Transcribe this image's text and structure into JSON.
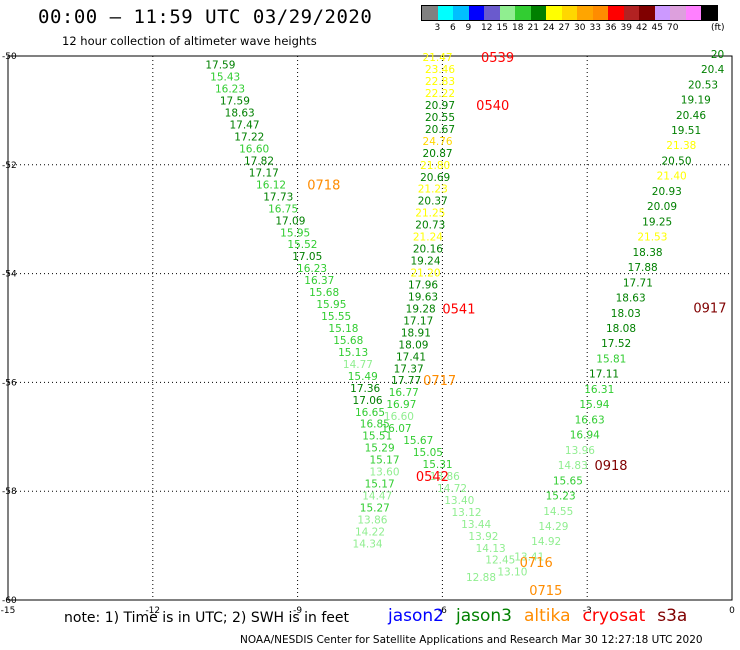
{
  "header": {
    "title": "00:00 – 11:59 UTC 03/29/2020",
    "subtitle": "12 hour collection of altimeter wave heights"
  },
  "colorbar": {
    "unit": "(ft)",
    "colors": [
      "#808080",
      "#00ffff",
      "#00bfff",
      "#0000ff",
      "#6a5acd",
      "#90ee90",
      "#32cd32",
      "#008000",
      "#ffff00",
      "#ffd700",
      "#ffa500",
      "#ff8c00",
      "#ff0000",
      "#b22222",
      "#800000",
      "#cc99ff",
      "#dda0dd",
      "#ff80ff",
      "#000000"
    ],
    "labels": [
      "3",
      "6",
      "9",
      "12",
      "15",
      "18",
      "21",
      "24",
      "27",
      "30",
      "33",
      "36",
      "39",
      "42",
      "45",
      "70"
    ]
  },
  "chart_data": {
    "type": "map-track-labels",
    "xlim": [
      -15,
      0
    ],
    "ylim": [
      -60,
      -50
    ],
    "x_ticks": [
      "-15",
      "-12",
      "-9",
      "-6",
      "-3",
      "0"
    ],
    "y_ticks": [
      "-50",
      "-52",
      "-54",
      "-56",
      "-58",
      "-60"
    ],
    "points": [
      {
        "x": -10.6,
        "y": -50.16,
        "v": "17.59",
        "c": "#008000"
      },
      {
        "x": -10.5,
        "y": -50.38,
        "v": "15.43",
        "c": "#32cd32"
      },
      {
        "x": -10.4,
        "y": -50.6,
        "v": "16.23",
        "c": "#32cd32"
      },
      {
        "x": -10.3,
        "y": -50.82,
        "v": "17.59",
        "c": "#008000"
      },
      {
        "x": -10.2,
        "y": -51.04,
        "v": "18.63",
        "c": "#008000"
      },
      {
        "x": -10.1,
        "y": -51.26,
        "v": "17.47",
        "c": "#008000"
      },
      {
        "x": -10.0,
        "y": -51.48,
        "v": "17.22",
        "c": "#008000"
      },
      {
        "x": -9.9,
        "y": -51.7,
        "v": "16.60",
        "c": "#32cd32"
      },
      {
        "x": -9.8,
        "y": -51.92,
        "v": "17.82",
        "c": "#008000"
      },
      {
        "x": -9.7,
        "y": -52.14,
        "v": "17.17",
        "c": "#008000"
      },
      {
        "x": -9.55,
        "y": -52.36,
        "v": "16.12",
        "c": "#32cd32"
      },
      {
        "x": -9.4,
        "y": -52.58,
        "v": "17.73",
        "c": "#008000"
      },
      {
        "x": -9.3,
        "y": -52.8,
        "v": "16.75",
        "c": "#32cd32"
      },
      {
        "x": -9.15,
        "y": -53.02,
        "v": "17.09",
        "c": "#008000"
      },
      {
        "x": -9.05,
        "y": -53.24,
        "v": "15.95",
        "c": "#32cd32"
      },
      {
        "x": -8.9,
        "y": -53.46,
        "v": "15.52",
        "c": "#32cd32"
      },
      {
        "x": -8.8,
        "y": -53.68,
        "v": "17.05",
        "c": "#008000"
      },
      {
        "x": -8.7,
        "y": -53.9,
        "v": "16.23",
        "c": "#32cd32"
      },
      {
        "x": -8.55,
        "y": -54.12,
        "v": "16.37",
        "c": "#32cd32"
      },
      {
        "x": -8.45,
        "y": -54.34,
        "v": "15.68",
        "c": "#32cd32"
      },
      {
        "x": -8.3,
        "y": -54.56,
        "v": "15.95",
        "c": "#32cd32"
      },
      {
        "x": -8.2,
        "y": -54.78,
        "v": "15.55",
        "c": "#32cd32"
      },
      {
        "x": -8.05,
        "y": -55.0,
        "v": "15.18",
        "c": "#32cd32"
      },
      {
        "x": -7.95,
        "y": -55.22,
        "v": "15.68",
        "c": "#32cd32"
      },
      {
        "x": -7.85,
        "y": -55.44,
        "v": "15.13",
        "c": "#32cd32"
      },
      {
        "x": -7.75,
        "y": -55.66,
        "v": "14.77",
        "c": "#90ee90"
      },
      {
        "x": -7.65,
        "y": -55.88,
        "v": "15.49",
        "c": "#32cd32"
      },
      {
        "x": -7.6,
        "y": -56.1,
        "v": "17.36",
        "c": "#008000"
      },
      {
        "x": -7.55,
        "y": -56.32,
        "v": "17.06",
        "c": "#008000"
      },
      {
        "x": -7.5,
        "y": -56.54,
        "v": "16.65",
        "c": "#32cd32"
      },
      {
        "x": -7.4,
        "y": -56.76,
        "v": "16.85",
        "c": "#32cd32"
      },
      {
        "x": -7.35,
        "y": -56.98,
        "v": "15.51",
        "c": "#32cd32"
      },
      {
        "x": -7.3,
        "y": -57.2,
        "v": "15.29",
        "c": "#32cd32"
      },
      {
        "x": -7.2,
        "y": -57.42,
        "v": "15.17",
        "c": "#32cd32"
      },
      {
        "x": -7.2,
        "y": -57.64,
        "v": "13.60",
        "c": "#90ee90"
      },
      {
        "x": -7.3,
        "y": -57.86,
        "v": "15.17",
        "c": "#32cd32"
      },
      {
        "x": -7.35,
        "y": -58.08,
        "v": "14.47",
        "c": "#90ee90"
      },
      {
        "x": -7.4,
        "y": -58.3,
        "v": "15.27",
        "c": "#32cd32"
      },
      {
        "x": -7.45,
        "y": -58.52,
        "v": "13.86",
        "c": "#90ee90"
      },
      {
        "x": -7.5,
        "y": -58.74,
        "v": "14.22",
        "c": "#90ee90"
      },
      {
        "x": -7.55,
        "y": -58.96,
        "v": "14.34",
        "c": "#90ee90"
      },
      {
        "x": -6.1,
        "y": -50.02,
        "v": "21.47",
        "c": "#ffff00"
      },
      {
        "x": -6.05,
        "y": -50.24,
        "v": "23.46",
        "c": "#ffff00"
      },
      {
        "x": -6.05,
        "y": -50.46,
        "v": "22.83",
        "c": "#ffff00"
      },
      {
        "x": -6.05,
        "y": -50.68,
        "v": "22.22",
        "c": "#ffff00"
      },
      {
        "x": -6.05,
        "y": -50.9,
        "v": "20.97",
        "c": "#008000"
      },
      {
        "x": -6.05,
        "y": -51.12,
        "v": "20.55",
        "c": "#008000"
      },
      {
        "x": -6.05,
        "y": -51.34,
        "v": "20.67",
        "c": "#008000"
      },
      {
        "x": -6.1,
        "y": -51.56,
        "v": "24.76",
        "c": "#ffd700"
      },
      {
        "x": -6.1,
        "y": -51.78,
        "v": "20.87",
        "c": "#008000"
      },
      {
        "x": -6.15,
        "y": -52.0,
        "v": "21.80",
        "c": "#ffff00"
      },
      {
        "x": -6.15,
        "y": -52.22,
        "v": "20.69",
        "c": "#008000"
      },
      {
        "x": -6.2,
        "y": -52.44,
        "v": "21.23",
        "c": "#ffff00"
      },
      {
        "x": -6.2,
        "y": -52.66,
        "v": "20.37",
        "c": "#008000"
      },
      {
        "x": -6.25,
        "y": -52.88,
        "v": "21.25",
        "c": "#ffff00"
      },
      {
        "x": -6.25,
        "y": -53.1,
        "v": "20.73",
        "c": "#008000"
      },
      {
        "x": -6.3,
        "y": -53.32,
        "v": "21.24",
        "c": "#ffff00"
      },
      {
        "x": -6.3,
        "y": -53.54,
        "v": "20.16",
        "c": "#008000"
      },
      {
        "x": -6.35,
        "y": -53.76,
        "v": "19.24",
        "c": "#008000"
      },
      {
        "x": -6.35,
        "y": -53.98,
        "v": "21.20",
        "c": "#ffff00"
      },
      {
        "x": -6.4,
        "y": -54.2,
        "v": "17.96",
        "c": "#008000"
      },
      {
        "x": -6.4,
        "y": -54.42,
        "v": "19.63",
        "c": "#008000"
      },
      {
        "x": -6.45,
        "y": -54.64,
        "v": "19.28",
        "c": "#008000"
      },
      {
        "x": -6.5,
        "y": -54.86,
        "v": "17.17",
        "c": "#008000"
      },
      {
        "x": -6.55,
        "y": -55.08,
        "v": "18.91",
        "c": "#008000"
      },
      {
        "x": -6.6,
        "y": -55.3,
        "v": "18.09",
        "c": "#008000"
      },
      {
        "x": -6.65,
        "y": -55.52,
        "v": "17.41",
        "c": "#008000"
      },
      {
        "x": -6.7,
        "y": -55.74,
        "v": "17.37",
        "c": "#008000"
      },
      {
        "x": -6.75,
        "y": -55.96,
        "v": "17.77",
        "c": "#008000"
      },
      {
        "x": -6.8,
        "y": -56.18,
        "v": "16.77",
        "c": "#32cd32"
      },
      {
        "x": -6.85,
        "y": -56.4,
        "v": "16.97",
        "c": "#32cd32"
      },
      {
        "x": -6.9,
        "y": -56.62,
        "v": "16.60",
        "c": "#90ee90"
      },
      {
        "x": -6.95,
        "y": -56.84,
        "v": "16.07",
        "c": "#32cd32"
      },
      {
        "x": -6.5,
        "y": -57.06,
        "v": "15.67",
        "c": "#32cd32"
      },
      {
        "x": -6.3,
        "y": -57.28,
        "v": "15.05",
        "c": "#32cd32"
      },
      {
        "x": -6.1,
        "y": -57.5,
        "v": "15.31",
        "c": "#32cd32"
      },
      {
        "x": -5.95,
        "y": -57.72,
        "v": "13.86",
        "c": "#90ee90"
      },
      {
        "x": -5.8,
        "y": -57.94,
        "v": "14.72",
        "c": "#90ee90"
      },
      {
        "x": -5.65,
        "y": -58.16,
        "v": "13.40",
        "c": "#90ee90"
      },
      {
        "x": -5.5,
        "y": -58.38,
        "v": "13.12",
        "c": "#90ee90"
      },
      {
        "x": -5.3,
        "y": -58.6,
        "v": "13.44",
        "c": "#90ee90"
      },
      {
        "x": -5.15,
        "y": -58.82,
        "v": "13.92",
        "c": "#90ee90"
      },
      {
        "x": -5.0,
        "y": -59.04,
        "v": "14.13",
        "c": "#90ee90"
      },
      {
        "x": -4.8,
        "y": -59.26,
        "v": "12.45",
        "c": "#90ee90"
      },
      {
        "x": -4.55,
        "y": -59.48,
        "v": "13.10",
        "c": "#90ee90"
      },
      {
        "x": -5.2,
        "y": -59.58,
        "v": "12.88",
        "c": "#90ee90"
      },
      {
        "x": -4.2,
        "y": -59.2,
        "v": "13.41",
        "c": "#90ee90"
      },
      {
        "x": -3.85,
        "y": -58.92,
        "v": "14.92",
        "c": "#90ee90"
      },
      {
        "x": -3.7,
        "y": -58.64,
        "v": "14.29",
        "c": "#90ee90"
      },
      {
        "x": -3.6,
        "y": -58.36,
        "v": "14.55",
        "c": "#90ee90"
      },
      {
        "x": -3.55,
        "y": -58.08,
        "v": "15.23",
        "c": "#32cd32"
      },
      {
        "x": -3.4,
        "y": -57.8,
        "v": "15.65",
        "c": "#32cd32"
      },
      {
        "x": -3.3,
        "y": -57.52,
        "v": "14.83",
        "c": "#90ee90"
      },
      {
        "x": -3.15,
        "y": -57.24,
        "v": "13.96",
        "c": "#90ee90"
      },
      {
        "x": -3.05,
        "y": -56.96,
        "v": "16.94",
        "c": "#32cd32"
      },
      {
        "x": -2.95,
        "y": -56.68,
        "v": "16.63",
        "c": "#32cd32"
      },
      {
        "x": -2.85,
        "y": -56.4,
        "v": "15.94",
        "c": "#32cd32"
      },
      {
        "x": -2.75,
        "y": -56.12,
        "v": "16.31",
        "c": "#32cd32"
      },
      {
        "x": -2.65,
        "y": -55.84,
        "v": "17.11",
        "c": "#008000"
      },
      {
        "x": -2.5,
        "y": -55.56,
        "v": "15.81",
        "c": "#32cd32"
      },
      {
        "x": -2.4,
        "y": -55.28,
        "v": "17.52",
        "c": "#008000"
      },
      {
        "x": -2.3,
        "y": -55.0,
        "v": "18.08",
        "c": "#008000"
      },
      {
        "x": -2.2,
        "y": -54.72,
        "v": "18.03",
        "c": "#008000"
      },
      {
        "x": -2.1,
        "y": -54.44,
        "v": "18.63",
        "c": "#008000"
      },
      {
        "x": -1.95,
        "y": -54.16,
        "v": "17.71",
        "c": "#008000"
      },
      {
        "x": -1.85,
        "y": -53.88,
        "v": "17.88",
        "c": "#008000"
      },
      {
        "x": -1.75,
        "y": -53.6,
        "v": "18.38",
        "c": "#008000"
      },
      {
        "x": -1.65,
        "y": -53.32,
        "v": "21.53",
        "c": "#ffff00"
      },
      {
        "x": -1.55,
        "y": -53.04,
        "v": "19.25",
        "c": "#008000"
      },
      {
        "x": -1.45,
        "y": -52.76,
        "v": "20.09",
        "c": "#008000"
      },
      {
        "x": -1.35,
        "y": -52.48,
        "v": "20.93",
        "c": "#008000"
      },
      {
        "x": -1.25,
        "y": -52.2,
        "v": "21.40",
        "c": "#ffff00"
      },
      {
        "x": -1.15,
        "y": -51.92,
        "v": "20.50",
        "c": "#008000"
      },
      {
        "x": -1.05,
        "y": -51.64,
        "v": "21.38",
        "c": "#ffff00"
      },
      {
        "x": -0.95,
        "y": -51.36,
        "v": "19.51",
        "c": "#008000"
      },
      {
        "x": -0.85,
        "y": -51.08,
        "v": "20.46",
        "c": "#008000"
      },
      {
        "x": -0.75,
        "y": -50.8,
        "v": "19.19",
        "c": "#008000"
      },
      {
        "x": -0.6,
        "y": -50.52,
        "v": "20.53",
        "c": "#008000"
      },
      {
        "x": -0.4,
        "y": -50.24,
        "v": "20.4",
        "c": "#008000"
      },
      {
        "x": -0.3,
        "y": -49.96,
        "v": "20",
        "c": "#008000"
      }
    ],
    "time_markers": [
      {
        "x": -5.2,
        "y": -50.02,
        "t": "0539",
        "c": "#ff0000"
      },
      {
        "x": -5.3,
        "y": -50.9,
        "t": "0540",
        "c": "#ff0000"
      },
      {
        "x": -8.8,
        "y": -52.36,
        "t": "0718",
        "c": "#ff8c00"
      },
      {
        "x": -6.0,
        "y": -54.64,
        "t": "0541",
        "c": "#ff0000"
      },
      {
        "x": -6.4,
        "y": -55.96,
        "t": "0717",
        "c": "#ff8c00"
      },
      {
        "x": -6.55,
        "y": -57.72,
        "t": "0542",
        "c": "#ff0000"
      },
      {
        "x": -4.4,
        "y": -59.3,
        "t": "0716",
        "c": "#ff8c00"
      },
      {
        "x": -4.2,
        "y": -59.82,
        "t": "0715",
        "c": "#ff8c00"
      },
      {
        "x": -2.85,
        "y": -57.52,
        "t": "0918",
        "c": "#800000"
      },
      {
        "x": -0.8,
        "y": -54.62,
        "t": "0917",
        "c": "#800000"
      }
    ]
  },
  "note": "note: 1) Time is in UTC; 2) SWH is in feet",
  "legend": [
    {
      "label": "jason2",
      "color": "#0000ff"
    },
    {
      "label": "jason3",
      "color": "#008000"
    },
    {
      "label": "altika",
      "color": "#ff8c00"
    },
    {
      "label": "cryosat",
      "color": "#ff0000"
    },
    {
      "label": "s3a",
      "color": "#800000"
    }
  ],
  "credit": "NOAA/NESDIS Center for Satellite Applications and Research   Mar 30 12:27:18 UTC 2020"
}
